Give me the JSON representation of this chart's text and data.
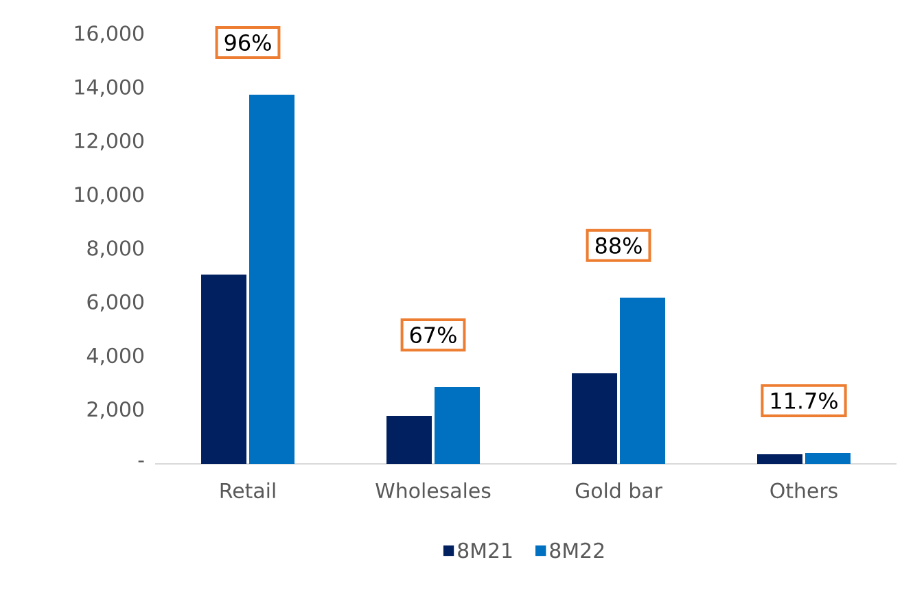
{
  "chart_data": {
    "type": "bar",
    "categories": [
      "Retail",
      "Wholesales",
      "Gold bar",
      "Others"
    ],
    "series": [
      {
        "name": "8M21",
        "color": "#002060",
        "values": [
          7050,
          1790,
          3370,
          360
        ]
      },
      {
        "name": "8M22",
        "color": "#0070c0",
        "values": [
          13750,
          2860,
          6190,
          410
        ]
      }
    ],
    "ylim": [
      0,
      16000
    ],
    "yticks": [
      {
        "value": 0,
        "label": "-"
      },
      {
        "value": 2000,
        "label": "2,000"
      },
      {
        "value": 4000,
        "label": "4,000"
      },
      {
        "value": 6000,
        "label": "6,000"
      },
      {
        "value": 8000,
        "label": "8,000"
      },
      {
        "value": 10000,
        "label": "10,000"
      },
      {
        "value": 12000,
        "label": "12,000"
      },
      {
        "value": 14000,
        "label": "14,000"
      },
      {
        "value": 16000,
        "label": "16,000"
      }
    ],
    "annotations": [
      "96%",
      "67%",
      "88%",
      "11.7%"
    ],
    "grid": false,
    "legend": "bottom"
  }
}
